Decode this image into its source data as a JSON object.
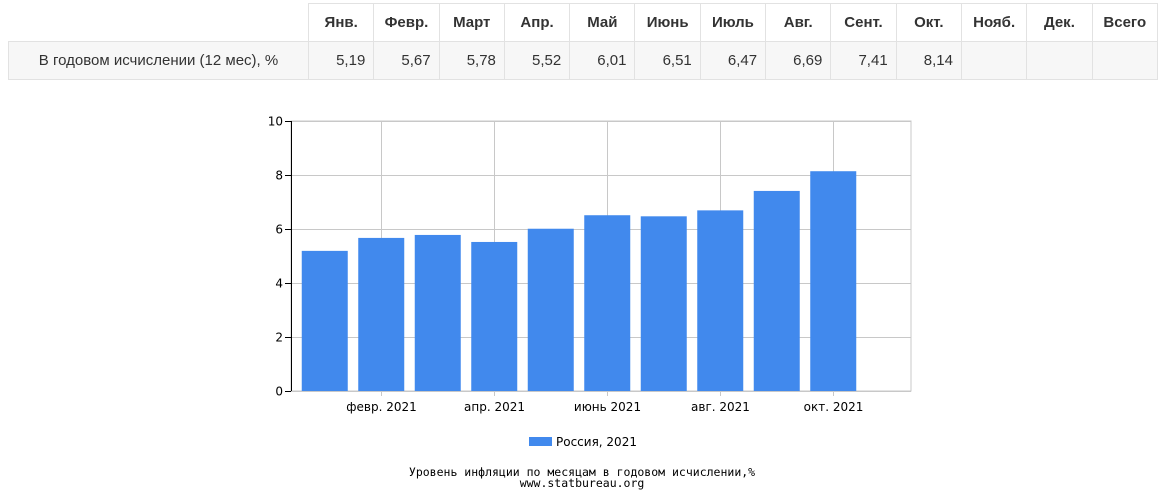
{
  "table": {
    "headers": [
      "",
      "Янв.",
      "Февр.",
      "Март",
      "Апр.",
      "Май",
      "Июнь",
      "Июль",
      "Авг.",
      "Сент.",
      "Окт.",
      "Нояб.",
      "Дек.",
      "Всего"
    ],
    "row_label": "В годовом исчислении (12 мес), %",
    "cells": [
      "5,19",
      "5,67",
      "5,78",
      "5,52",
      "6,01",
      "6,51",
      "6,47",
      "6,69",
      "7,41",
      "8,14",
      "",
      "",
      ""
    ]
  },
  "chart_data": {
    "type": "bar",
    "categories": [
      "янв. 2021",
      "февр. 2021",
      "март 2021",
      "апр. 2021",
      "май 2021",
      "июнь 2021",
      "июль 2021",
      "авг. 2021",
      "сент. 2021",
      "окт. 2021"
    ],
    "x_tick_labels": [
      "февр. 2021",
      "апр. 2021",
      "июнь 2021",
      "авг. 2021",
      "окт. 2021"
    ],
    "series": [
      {
        "name": "Россия, 2021",
        "values": [
          5.19,
          5.67,
          5.78,
          5.52,
          6.01,
          6.51,
          6.47,
          6.69,
          7.41,
          8.14
        ],
        "color": "#4189ed"
      }
    ],
    "ylim": [
      0,
      10
    ],
    "yticks": [
      0,
      2,
      4,
      6,
      8,
      10
    ],
    "grid": true,
    "legend_position": "bottom",
    "title": "Уровень инфляции по месяцам в годовом исчислении,%",
    "source": "www.statbureau.org"
  }
}
